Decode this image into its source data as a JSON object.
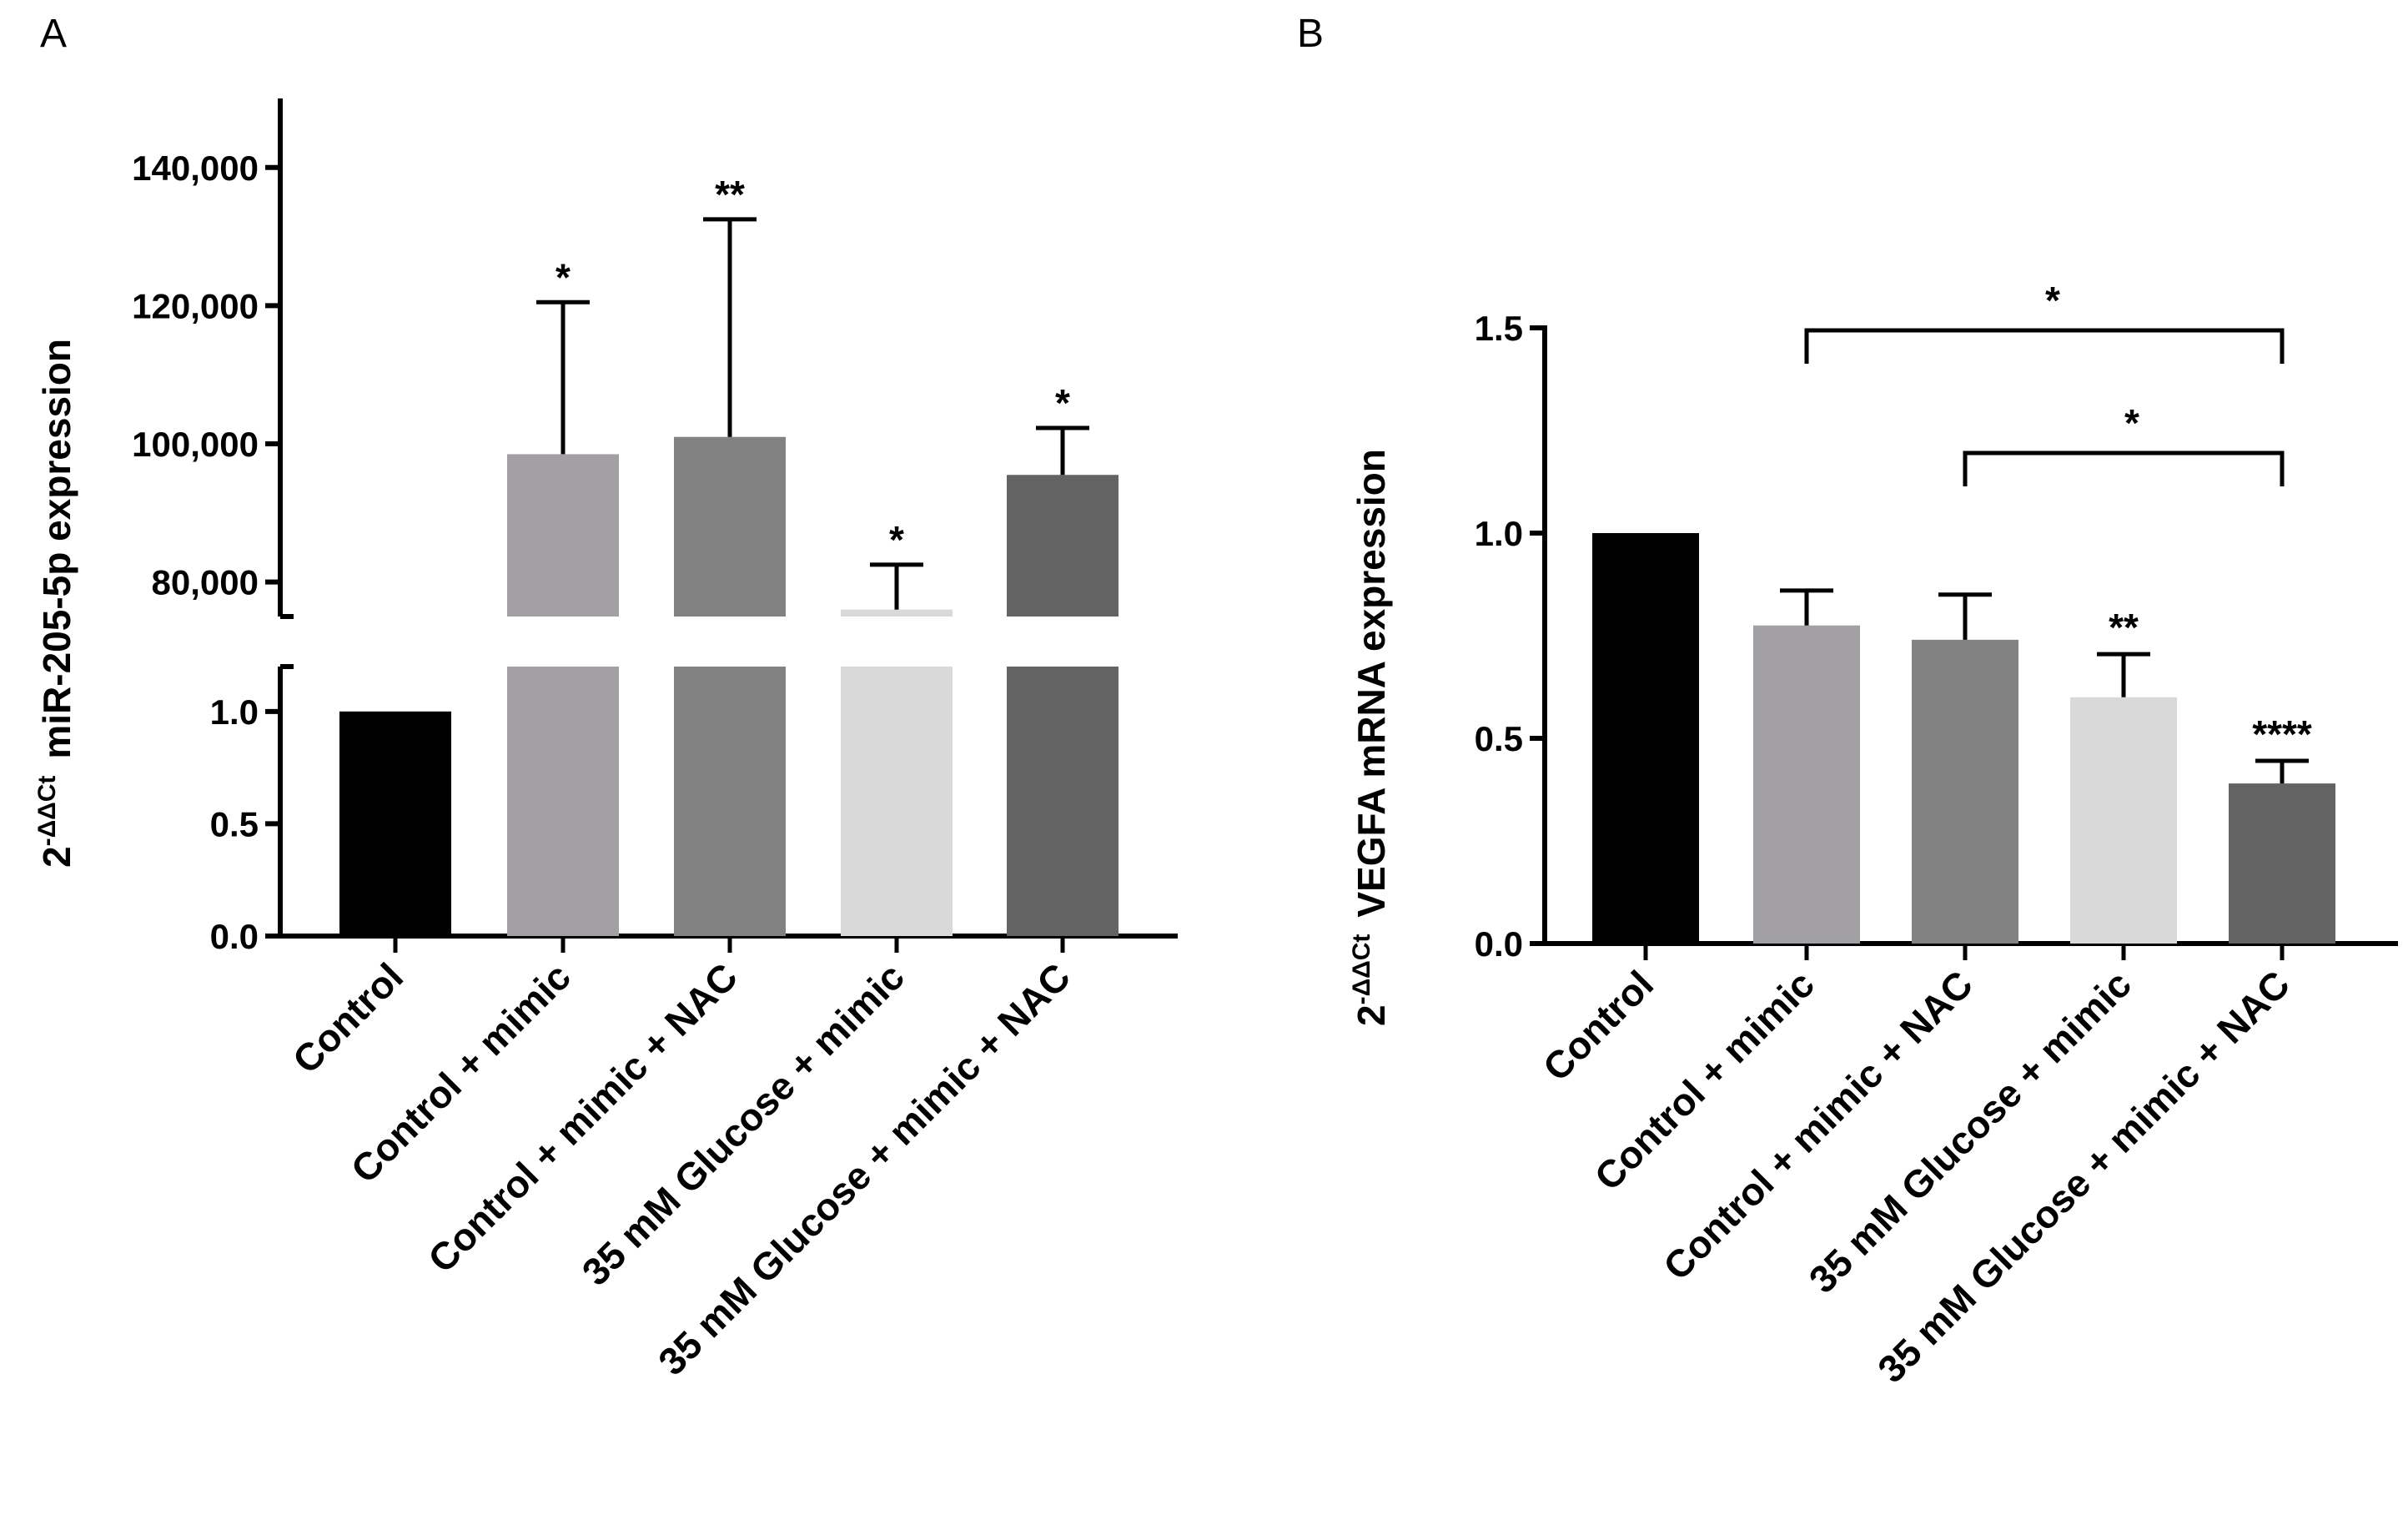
{
  "chart_data": [
    {
      "panel_label": "A",
      "type": "bar",
      "y_axis_break": true,
      "ylabel_prefix": "2",
      "ylabel_superscript": "-ΔΔCt",
      "ylabel": "miR-205-5p expression",
      "categories": [
        "Control",
        "Control + mimic",
        "Control + mimic + NAC",
        "35 mM Glucose + mimic",
        "35 mM Glucose + mimic + NAC"
      ],
      "values": [
        1,
        98500,
        101000,
        76000,
        95500
      ],
      "errors": [
        0,
        22000,
        31500,
        6500,
        6800
      ],
      "significance": [
        "",
        "*",
        "**",
        "*",
        "*"
      ],
      "colors": [
        "#000000",
        "#a2a0a4",
        "#828282",
        "#d9d9d9",
        "#636363"
      ],
      "lower_segment": {
        "ylim": [
          0,
          1.2
        ],
        "ticks": [
          "0.0",
          "0.5",
          "1.0"
        ]
      },
      "upper_segment": {
        "ylim": [
          75000,
          150000
        ],
        "ticks": [
          "80,000",
          "100,000",
          "120,000",
          "140,000"
        ]
      }
    },
    {
      "panel_label": "B",
      "type": "bar",
      "ylabel_prefix": "2",
      "ylabel_superscript": "-ΔΔCt",
      "ylabel": "VEGFA mRNA expression",
      "categories": [
        "Control",
        "Control + mimic",
        "Control + mimic + NAC",
        "35 mM Glucose + mimic",
        "35 mM Glucose + mimic + NAC"
      ],
      "values": [
        1.0,
        0.775,
        0.74,
        0.6,
        0.39
      ],
      "errors": [
        0,
        0.085,
        0.11,
        0.105,
        0.055
      ],
      "significance": [
        "",
        "",
        "",
        "**",
        "****"
      ],
      "colors": [
        "#000000",
        "#a2a0a4",
        "#828282",
        "#d9d9d9",
        "#636363"
      ],
      "ylim": [
        0,
        1.5
      ],
      "ticks": [
        "0.0",
        "0.5",
        "1.0",
        "1.5"
      ],
      "brackets": [
        {
          "from": 1,
          "to": 4,
          "label": "*"
        },
        {
          "from": 2,
          "to": 4,
          "label": "*"
        }
      ]
    }
  ]
}
